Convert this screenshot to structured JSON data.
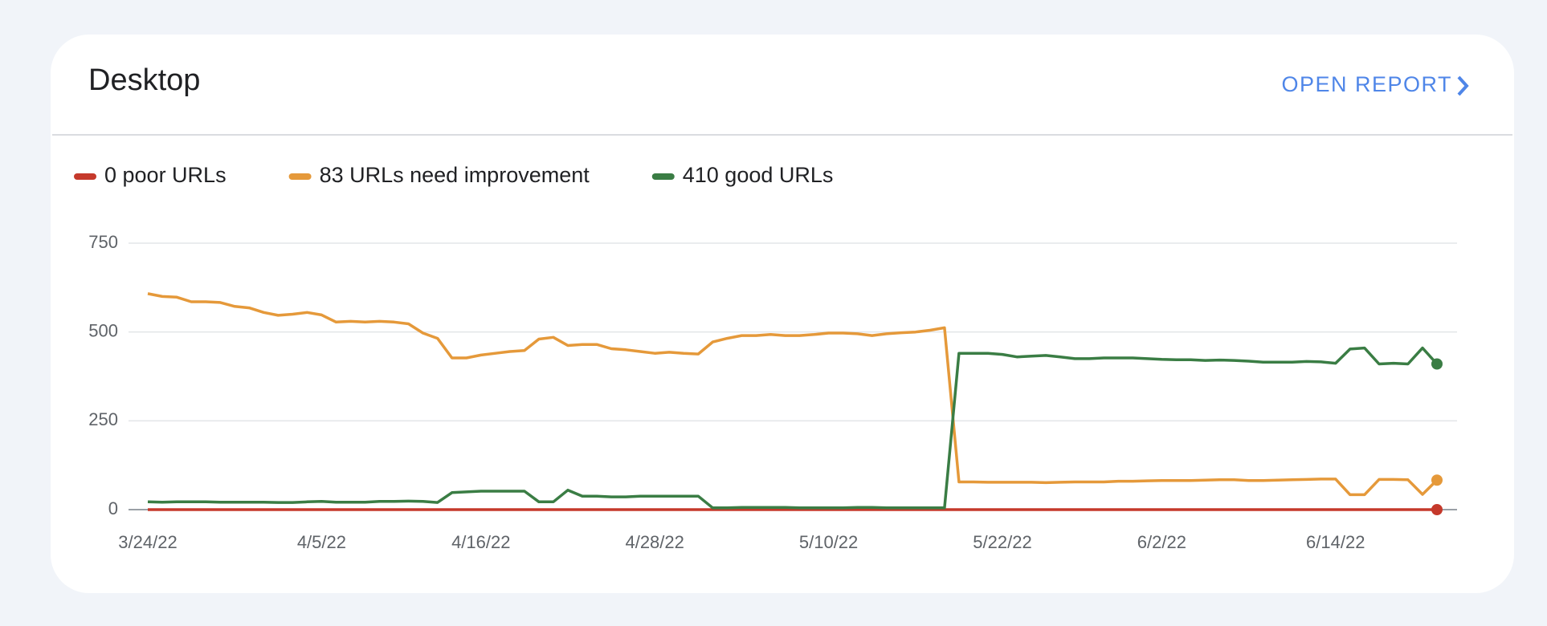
{
  "header": {
    "title": "Desktop",
    "link": "OPEN REPORT"
  },
  "chart_data": {
    "type": "line",
    "categories": [
      "3/24/22",
      null,
      null,
      null,
      null,
      null,
      null,
      null,
      null,
      null,
      null,
      null,
      "4/5/22",
      null,
      null,
      null,
      null,
      null,
      null,
      null,
      null,
      null,
      null,
      "4/16/22",
      null,
      null,
      null,
      null,
      null,
      null,
      null,
      null,
      null,
      null,
      null,
      "4/28/22",
      null,
      null,
      null,
      null,
      null,
      null,
      null,
      null,
      null,
      null,
      null,
      "5/10/22",
      null,
      null,
      null,
      null,
      null,
      null,
      null,
      null,
      null,
      null,
      null,
      "5/22/22",
      null,
      null,
      null,
      null,
      null,
      null,
      null,
      null,
      null,
      null,
      "6/2/22",
      null,
      null,
      null,
      null,
      null,
      null,
      null,
      null,
      null,
      null,
      null,
      "6/14/22",
      null,
      null,
      null,
      null,
      null,
      null,
      null
    ],
    "ylim": [
      0,
      750
    ],
    "yticks": [
      0,
      250,
      500,
      750
    ],
    "grid": true,
    "series": [
      {
        "name": "0 poor URLs",
        "color": "#c5392b",
        "values": [
          0,
          0,
          0,
          0,
          0,
          0,
          0,
          0,
          0,
          0,
          0,
          0,
          0,
          0,
          0,
          0,
          0,
          0,
          0,
          0,
          0,
          0,
          0,
          0,
          0,
          0,
          0,
          0,
          0,
          0,
          0,
          0,
          0,
          0,
          0,
          0,
          0,
          0,
          0,
          0,
          0,
          0,
          0,
          0,
          0,
          0,
          0,
          0,
          0,
          0,
          0,
          0,
          0,
          0,
          0,
          0,
          0,
          0,
          0,
          0,
          0,
          0,
          0,
          0,
          0,
          0,
          0,
          0,
          0,
          0,
          0,
          0,
          0,
          0,
          0,
          0,
          0,
          0,
          0,
          0,
          0,
          0,
          0,
          0,
          0,
          0,
          0,
          0,
          0,
          0
        ]
      },
      {
        "name": "83 URLs need improvement",
        "color": "#e5993a",
        "values": [
          608,
          600,
          598,
          585,
          585,
          583,
          572,
          568,
          555,
          547,
          550,
          555,
          548,
          528,
          530,
          528,
          530,
          528,
          523,
          497,
          482,
          427,
          427,
          435,
          440,
          445,
          448,
          480,
          485,
          462,
          465,
          465,
          453,
          450,
          445,
          440,
          443,
          440,
          438,
          472,
          482,
          490,
          490,
          493,
          490,
          490,
          493,
          497,
          497,
          495,
          490,
          495,
          498,
          500,
          505,
          512,
          78,
          78,
          77,
          77,
          77,
          77,
          76,
          77,
          78,
          78,
          78,
          80,
          80,
          81,
          82,
          82,
          82,
          83,
          84,
          84,
          82,
          82,
          83,
          84,
          85,
          86,
          86,
          42,
          42,
          85,
          85,
          84,
          43,
          83
        ]
      },
      {
        "name": "410 good URLs",
        "color": "#3a7d44",
        "values": [
          22,
          21,
          22,
          22,
          22,
          21,
          21,
          21,
          21,
          20,
          20,
          22,
          23,
          21,
          21,
          21,
          23,
          23,
          24,
          23,
          20,
          48,
          50,
          52,
          52,
          52,
          52,
          22,
          22,
          55,
          38,
          38,
          36,
          36,
          38,
          38,
          38,
          38,
          38,
          5,
          5,
          6,
          6,
          6,
          6,
          5,
          5,
          5,
          5,
          6,
          6,
          5,
          5,
          5,
          5,
          5,
          440,
          440,
          440,
          437,
          430,
          432,
          434,
          430,
          425,
          425,
          427,
          427,
          427,
          425,
          423,
          422,
          422,
          420,
          421,
          420,
          418,
          415,
          415,
          415,
          417,
          416,
          412,
          452,
          455,
          410,
          412,
          410,
          455,
          410
        ]
      }
    ]
  }
}
